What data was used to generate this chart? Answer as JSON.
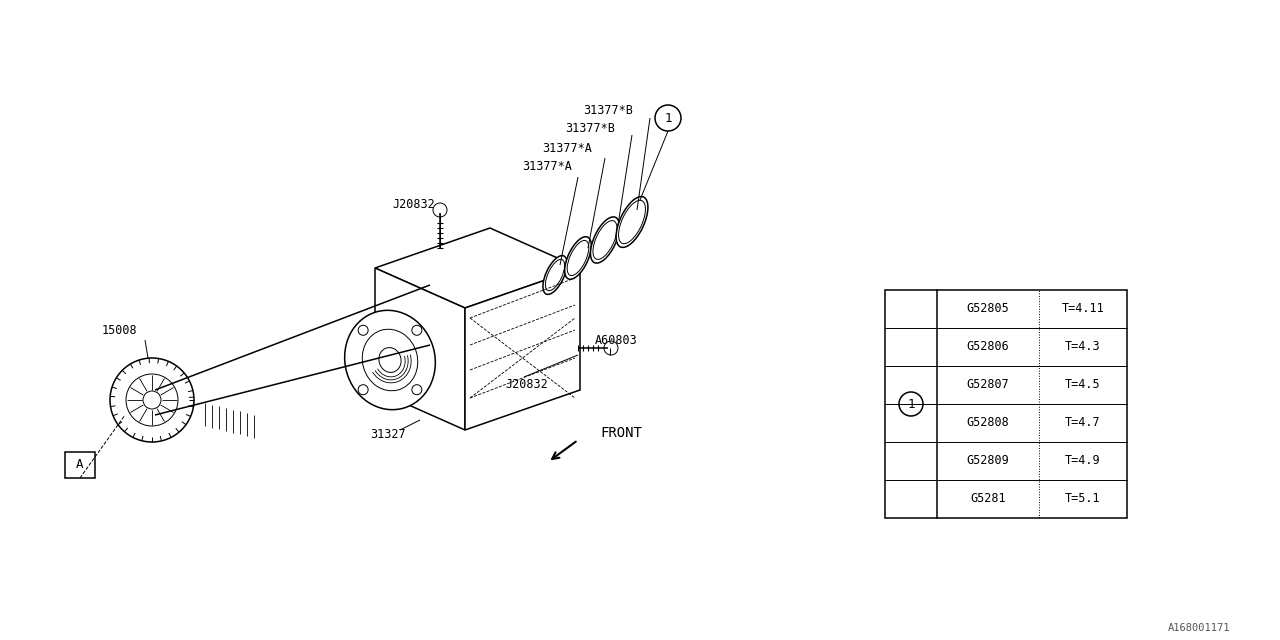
{
  "bg_color": "#ffffff",
  "line_color": "#000000",
  "fig_width": 12.8,
  "fig_height": 6.4,
  "watermark": "A168001171",
  "table_data": [
    [
      "G52805",
      "T=4.11"
    ],
    [
      "G52806",
      "T=4.3"
    ],
    [
      "G52807",
      "T=4.5"
    ],
    [
      "G52808",
      "T=4.7"
    ],
    [
      "G52809",
      "T=4.9"
    ],
    [
      "G5281",
      "T=5.1"
    ]
  ],
  "labels": {
    "31377_B1": "31377*B",
    "31377_B2": "31377*B",
    "31377_A1": "31377*A",
    "31377_A2": "31377*A",
    "J20832_top": "J20832",
    "J20832_bot": "J20832",
    "A60803": "A60803",
    "31327": "31327",
    "15008": "15008",
    "FRONT": "FRONT"
  },
  "callout_A": "A",
  "callout_1": "1"
}
